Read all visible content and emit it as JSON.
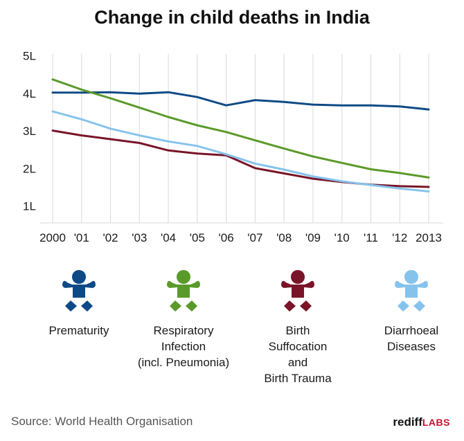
{
  "title": "Change in child deaths in India",
  "chart_data": {
    "type": "line",
    "x": [
      "2000",
      "'01",
      "'02",
      "'03",
      "'04",
      "'05",
      "'06",
      "'07",
      "'08",
      "'09",
      "'10",
      "'11",
      "'12",
      "2013"
    ],
    "yticks": [
      "1L",
      "2L",
      "3L",
      "4L",
      "5L"
    ],
    "ylim": [
      0.5,
      5
    ],
    "grid": "vertical",
    "series": [
      {
        "name": "Prematurity",
        "color": "#0d4a86",
        "values": [
          4.02,
          4.02,
          4.03,
          3.99,
          4.03,
          3.9,
          3.68,
          3.82,
          3.77,
          3.7,
          3.68,
          3.68,
          3.65,
          3.57
        ]
      },
      {
        "name": "Respiratory Infection (incl. Pneumonia)",
        "color": "#5a9a2a",
        "values": [
          4.37,
          4.1,
          3.87,
          3.62,
          3.37,
          3.15,
          2.97,
          2.75,
          2.53,
          2.32,
          2.15,
          1.98,
          1.88,
          1.76
        ]
      },
      {
        "name": "Birth Suffocation and Birth Trauma",
        "color": "#7a1428",
        "values": [
          3.01,
          2.88,
          2.78,
          2.68,
          2.48,
          2.4,
          2.35,
          2.01,
          1.87,
          1.73,
          1.64,
          1.57,
          1.53,
          1.51
        ]
      },
      {
        "name": "Diarrhoeal Diseases",
        "color": "#86c3ec",
        "values": [
          3.52,
          3.31,
          3.06,
          2.88,
          2.72,
          2.6,
          2.38,
          2.13,
          1.97,
          1.79,
          1.66,
          1.56,
          1.47,
          1.39
        ]
      }
    ]
  },
  "legend": [
    {
      "label": "Prematurity",
      "color": "#0d4a86",
      "icon": "baby-icon"
    },
    {
      "label": "Respiratory\nInfection\n(incl. Pneumonia)",
      "color": "#5a9a2a",
      "icon": "baby-icon"
    },
    {
      "label": "Birth\nSuffocation\nand\nBirth Trauma",
      "color": "#7a1428",
      "icon": "baby-icon"
    },
    {
      "label": "Diarrhoeal\nDiseases",
      "color": "#86c3ec",
      "icon": "baby-icon"
    }
  ],
  "footer": {
    "source": "Source: World Health Organisation",
    "brand_name": "rediff",
    "brand_suffix": "LABS"
  }
}
